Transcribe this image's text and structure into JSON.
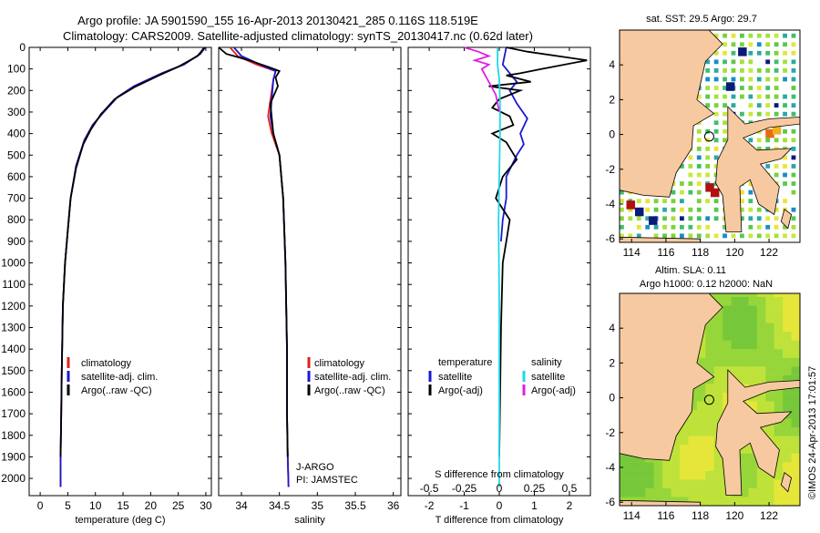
{
  "header": {
    "line1": "Argo profile: JA 5901590_155 16-Apr-2013 20130421_285 0.116S 118.519E",
    "line2": "Climatology: CARS2009. Satellite-adjusted climatology: synTS_20130417.nc (0.62d later)"
  },
  "colors": {
    "climatology": "#e0201a",
    "satellite": "#1a1ad0",
    "argo": "#000000",
    "sal_satellite": "#20d8e8",
    "sal_argo": "#e020e0",
    "land": "#f7c9a0"
  },
  "chart_data": [
    {
      "type": "line",
      "id": "temperature-profile",
      "xlabel": "temperature (deg C)",
      "ylabel": "",
      "xlim": [
        -2,
        31
      ],
      "ylim": [
        2080,
        0
      ],
      "xticks": [
        0,
        5,
        10,
        15,
        20,
        25,
        30
      ],
      "yticks": [
        0,
        100,
        200,
        300,
        400,
        500,
        600,
        700,
        800,
        900,
        1000,
        1100,
        1200,
        1300,
        1400,
        1500,
        1600,
        1700,
        1800,
        1900,
        2000
      ],
      "legend": [
        "climatology",
        "satellite-adj. clim.",
        "Argo(..raw -QC)"
      ],
      "series": [
        {
          "name": "climatology",
          "x": [
            29.6,
            29.0,
            26.0,
            22.0,
            17.0,
            14.0,
            11.5,
            9.5,
            8.0,
            6.5,
            5.5,
            5.0,
            4.5,
            4.1,
            3.9,
            3.8,
            3.7,
            3.7
          ],
          "y": [
            0,
            30,
            80,
            120,
            180,
            230,
            300,
            360,
            430,
            550,
            700,
            850,
            1000,
            1200,
            1500,
            1700,
            1900,
            2040
          ]
        },
        {
          "name": "satellite-adj. clim.",
          "x": [
            29.9,
            29.0,
            26.0,
            22.0,
            17.0,
            14.0,
            11.5,
            9.5,
            8.0,
            6.5,
            5.5,
            5.0,
            4.5,
            4.1,
            3.9,
            3.8,
            3.7,
            3.7
          ],
          "y": [
            0,
            30,
            80,
            120,
            180,
            230,
            300,
            360,
            430,
            550,
            700,
            850,
            1000,
            1200,
            1500,
            1700,
            1900,
            2040
          ]
        },
        {
          "name": "Argo(..raw -QC)",
          "x": [
            29.8,
            28.5,
            25.0,
            21.5,
            17.0,
            13.5,
            11.0,
            9.2,
            7.8,
            6.5,
            5.5,
            5.0,
            4.5,
            4.1,
            3.9,
            3.8,
            3.7
          ],
          "y": [
            0,
            40,
            90,
            130,
            185,
            240,
            310,
            380,
            450,
            560,
            700,
            850,
            1000,
            1200,
            1500,
            1700,
            1900
          ]
        }
      ]
    },
    {
      "type": "line",
      "id": "salinity-profile",
      "xlabel": "salinity",
      "xlim": [
        33.7,
        36.1
      ],
      "ylim": [
        2080,
        0
      ],
      "xticks": [
        34,
        34.5,
        35,
        35.5,
        36
      ],
      "xtick_labels": [
        "34",
        "34.5",
        "35",
        "35.5",
        "36"
      ],
      "legend": [
        "climatology",
        "satellite-adj. clim.",
        "Argo(..raw -QC)"
      ],
      "annotations": [
        "J-ARGO",
        "PI: JAMSTEC"
      ],
      "series": [
        {
          "name": "climatology",
          "x": [
            33.85,
            33.95,
            34.2,
            34.45,
            34.42,
            34.35,
            34.4,
            34.5,
            34.55,
            34.58,
            34.6,
            34.6,
            34.61,
            34.62
          ],
          "y": [
            0,
            40,
            80,
            110,
            150,
            320,
            400,
            500,
            700,
            1000,
            1400,
            1700,
            1900,
            2040
          ]
        },
        {
          "name": "satellite-adj. clim.",
          "x": [
            33.9,
            34.0,
            34.25,
            34.45,
            34.42,
            34.38,
            34.42,
            34.5,
            34.55,
            34.58,
            34.6,
            34.6,
            34.61,
            34.62
          ],
          "y": [
            0,
            40,
            80,
            110,
            150,
            320,
            400,
            500,
            700,
            1000,
            1400,
            1700,
            1900,
            2040
          ]
        },
        {
          "name": "Argo(..raw -QC)",
          "x": [
            33.7,
            33.8,
            34.1,
            34.35,
            34.5,
            34.45,
            34.48,
            34.38,
            34.42,
            34.5,
            34.55,
            34.58,
            34.6,
            34.6,
            34.61
          ],
          "y": [
            0,
            30,
            60,
            90,
            110,
            140,
            180,
            260,
            400,
            500,
            700,
            1000,
            1400,
            1700,
            1900
          ]
        }
      ]
    },
    {
      "type": "line",
      "id": "difference-profile",
      "xlabel": "T difference from climatology",
      "xlabel_top": "S difference from climatology",
      "xlim": [
        -2.6,
        2.6
      ],
      "ylim": [
        2080,
        0
      ],
      "xticks": [
        -2,
        -1,
        0,
        1,
        2
      ],
      "xtick_labels": [
        "-2",
        "-1",
        "0",
        "1",
        "2"
      ],
      "sticks_top": [
        -0.5,
        -0.25,
        0,
        0.25,
        0.5
      ],
      "stick_labels": [
        "-0.5",
        "-0.25",
        "0",
        "0.25",
        "0.5"
      ],
      "legend_headers": [
        "temperature",
        "salinity"
      ],
      "legend": [
        "satellite",
        "Argo(-adj)",
        "satellite",
        "Argo(-adj)"
      ],
      "series": [
        {
          "name": "satellite",
          "x": [
            0.2,
            0.1,
            0.3,
            0.5,
            0.3,
            0.5,
            0.8,
            0.6,
            0.7,
            0.5,
            0.2,
            0.2,
            0.1,
            0.05
          ],
          "y": [
            0,
            80,
            120,
            160,
            200,
            260,
            330,
            400,
            450,
            500,
            600,
            700,
            800,
            900
          ]
        },
        {
          "name": "Argo(-adj)",
          "x": [
            0.2,
            0.8,
            2.5,
            1.2,
            0.6,
            0.2,
            0.9,
            -0.3,
            0.6,
            0.0,
            -0.2,
            0.3,
            0.4,
            -0.2,
            0.2,
            0.5,
            0.1,
            -0.1,
            0.3,
            0.2,
            0.1,
            0.05,
            0.0
          ],
          "y": [
            0,
            20,
            60,
            100,
            120,
            130,
            160,
            180,
            200,
            240,
            280,
            320,
            360,
            400,
            440,
            520,
            600,
            700,
            800,
            900,
            1000,
            1300,
            1900
          ]
        },
        {
          "name": "satellite",
          "x": [
            -0.05,
            -0.05,
            0.0,
            0.02,
            0.02,
            0.0,
            -0.02,
            0.0,
            0.0,
            0.0
          ],
          "y": [
            0,
            80,
            150,
            250,
            400,
            600,
            800,
            1200,
            1600,
            2040
          ]
        },
        {
          "name": "Argo(-adj)",
          "x": [
            -1.0,
            -0.6,
            -0.3,
            -0.7,
            -0.3,
            -0.5,
            -0.4,
            -0.3,
            -0.1,
            0.0
          ],
          "y": [
            0,
            20,
            40,
            60,
            80,
            100,
            130,
            160,
            220,
            300
          ]
        }
      ]
    },
    {
      "type": "heatmap",
      "id": "sst-map",
      "title": "sat. SST: 29.5 Argo: 29.7",
      "xlim": [
        113.3,
        123.8
      ],
      "ylim": [
        -6.2,
        6.0
      ],
      "xticks": [
        114,
        116,
        118,
        120,
        122
      ],
      "yticks": [
        4,
        2,
        0,
        -2,
        -4,
        -6
      ],
      "marker": {
        "lon": 118.519,
        "lat": -0.116
      }
    },
    {
      "type": "heatmap",
      "id": "sla-map",
      "title": "Altim. SLA: 0.11",
      "subtitle": "Argo h1000: 0.12 h2000: NaN",
      "xlim": [
        113.3,
        123.8
      ],
      "ylim": [
        -6.2,
        6.0
      ],
      "xticks": [
        114,
        116,
        118,
        120,
        122
      ],
      "yticks": [
        4,
        2,
        0,
        -2,
        -4,
        -6
      ],
      "marker": {
        "lon": 118.519,
        "lat": -0.116
      }
    }
  ],
  "credit": "©IMOS 24-Apr-2013 17:01:57"
}
